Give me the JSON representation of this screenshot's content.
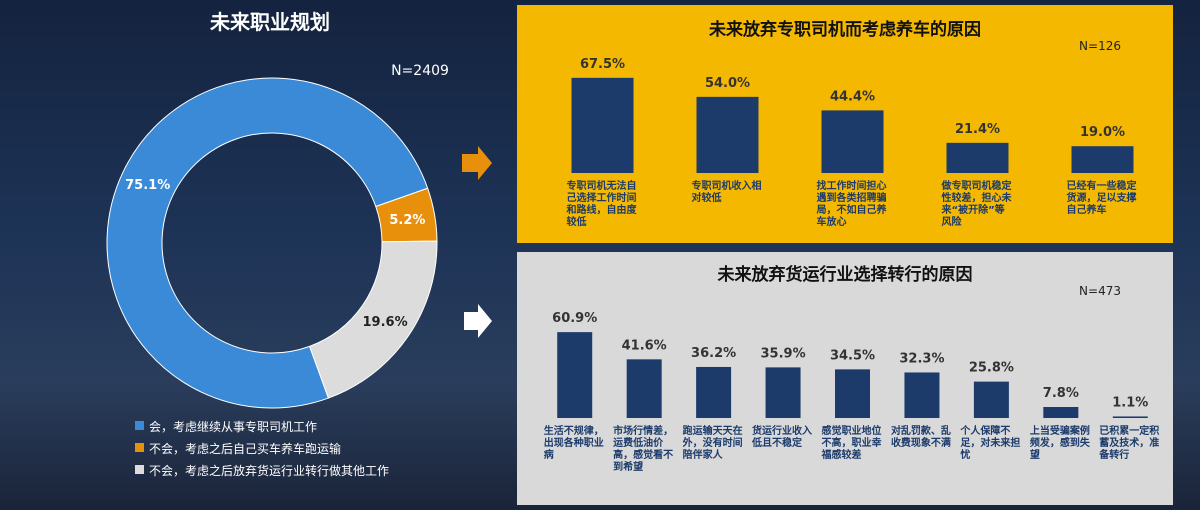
{
  "chart_data": [
    {
      "type": "pie",
      "title": "未来职业规划",
      "note": "N=2409",
      "categories": [
        "会，考虑继续从事专职司机工作",
        "不会，考虑之后自己买车养车跑运输",
        "不会，考虑之后放弃货运行业转行做其他工作"
      ],
      "values": [
        75.1,
        5.2,
        19.6
      ],
      "value_labels": [
        "75.1%",
        "5.2%",
        "19.6%"
      ],
      "colors": [
        "#3b8ad8",
        "#e8900c",
        "#dcdcdc"
      ],
      "legend": "bottom"
    },
    {
      "type": "bar",
      "title": "未来放弃专职司机而考虑养车的原因",
      "note": "N=126",
      "categories": [
        "专职司机无法自己选择工作时间和路线，自由度较低",
        "专职司机收入相对较低",
        "找工作时间担心遇到各类招聘骗局，不如自己养车放心",
        "做专职司机稳定性较差，担心未来“被开除”等风险",
        "已经有一些稳定货源，足以支撑自己养车"
      ],
      "values": [
        67.5,
        54.0,
        44.4,
        21.4,
        19.0
      ],
      "value_labels": [
        "67.5%",
        "54.0%",
        "44.4%",
        "21.4%",
        "19.0%"
      ],
      "color": "#1c3b6b",
      "ylim": [
        0,
        100
      ]
    },
    {
      "type": "bar",
      "title": "未来放弃货运行业选择转行的原因",
      "note": "N=473",
      "categories": [
        "生活不规律，出现各种职业病",
        "市场行情差，运费低油价高，感觉看不到希望",
        "跑运输天天在外，没有时间陪伴家人",
        "货运行业收入低且不稳定",
        "感觉职业地位不高，职业幸福感较差",
        "对乱罚款、乱收费现象不满",
        "个人保障不足，对未来担忧",
        "上当受骗案例频发，感到失望",
        "已积累一定积蓄及技术，准备转行"
      ],
      "values": [
        60.9,
        41.6,
        36.2,
        35.9,
        34.5,
        32.3,
        25.8,
        7.8,
        1.1
      ],
      "value_labels": [
        "60.9%",
        "41.6%",
        "36.2%",
        "35.9%",
        "34.5%",
        "32.3%",
        "25.8%",
        "7.8%",
        "1.1%"
      ],
      "color": "#1c3b6b",
      "ylim": [
        0,
        100
      ]
    }
  ]
}
